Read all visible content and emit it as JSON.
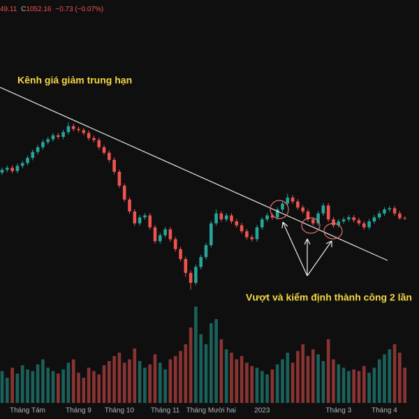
{
  "chart_data": {
    "type": "candlestick",
    "header": {
      "low_fragment": "49.11",
      "close_label": "C",
      "close_text": "1052.16",
      "change_text": "−0.73 (−0.07%)"
    },
    "annotations": [
      "Kênh giá giảm trung hạn",
      "Vượt và kiểm định thành công 2 lần"
    ],
    "categories": [
      null,
      null,
      null,
      null,
      null,
      "Tháng Tám",
      null,
      null,
      null,
      null,
      null,
      null,
      null,
      null,
      null,
      "Tháng 9",
      null,
      null,
      null,
      null,
      null,
      null,
      null,
      "Tháng 10",
      null,
      null,
      null,
      null,
      null,
      null,
      null,
      null,
      "Tháng 11",
      null,
      null,
      null,
      null,
      null,
      null,
      null,
      null,
      "Tháng Mười hai",
      null,
      null,
      null,
      null,
      null,
      null,
      null,
      null,
      null,
      "2023",
      null,
      null,
      null,
      null,
      null,
      null,
      null,
      null,
      null,
      null,
      null,
      null,
      null,
      null,
      "Tháng 3",
      null,
      null,
      null,
      null,
      null,
      null,
      null,
      null,
      "Tháng 4",
      null,
      null,
      null,
      null
    ],
    "open": [
      1168,
      1175,
      1180,
      1172,
      1185,
      1192,
      1205,
      1220,
      1232,
      1245,
      1252,
      1262,
      1258,
      1270,
      1285,
      1278,
      1275,
      1268,
      1255,
      1250,
      1232,
      1218,
      1200,
      1170,
      1135,
      1100,
      1070,
      1040,
      1055,
      1060,
      1030,
      995,
      1010,
      1025,
      1000,
      975,
      950,
      915,
      890,
      930,
      955,
      985,
      1040,
      1065,
      1050,
      1060,
      1045,
      1035,
      1020,
      1005,
      1000,
      1030,
      1050,
      1060,
      1055,
      1075,
      1090,
      1105,
      1095,
      1080,
      1070,
      1050,
      1040,
      1065,
      1085,
      1050,
      1035,
      1045,
      1050,
      1055,
      1048,
      1040,
      1030,
      1045,
      1055,
      1065,
      1075,
      1078,
      1065,
      1052.89
    ],
    "high": [
      1181,
      1186,
      1186,
      1191,
      1198,
      1211,
      1226,
      1238,
      1251,
      1258,
      1268,
      1268,
      1276,
      1295,
      1291,
      1284,
      1281,
      1274,
      1261,
      1256,
      1238,
      1224,
      1206,
      1176,
      1141,
      1106,
      1076,
      1061,
      1066,
      1066,
      1036,
      1016,
      1031,
      1031,
      1006,
      981,
      956,
      921,
      936,
      961,
      991,
      1046,
      1075,
      1071,
      1066,
      1066,
      1051,
      1041,
      1026,
      1011,
      1036,
      1056,
      1066,
      1066,
      1081,
      1096,
      1115,
      1111,
      1101,
      1086,
      1076,
      1056,
      1071,
      1091,
      1091,
      1056,
      1051,
      1056,
      1061,
      1061,
      1054,
      1046,
      1051,
      1061,
      1071,
      1081,
      1084,
      1084,
      1071,
      1058
    ],
    "low": [
      1162,
      1169,
      1166,
      1166,
      1179,
      1186,
      1199,
      1214,
      1226,
      1239,
      1246,
      1252,
      1252,
      1264,
      1272,
      1269,
      1262,
      1249,
      1244,
      1226,
      1212,
      1194,
      1164,
      1129,
      1094,
      1064,
      1034,
      1034,
      1049,
      1024,
      989,
      989,
      1004,
      994,
      969,
      944,
      905,
      873,
      884,
      924,
      949,
      979,
      1034,
      1044,
      1044,
      1039,
      1029,
      1014,
      999,
      994,
      994,
      1024,
      1044,
      1049,
      1049,
      1069,
      1084,
      1089,
      1074,
      1064,
      1044,
      1034,
      1034,
      1059,
      1044,
      1029,
      1029,
      1039,
      1044,
      1042,
      1034,
      1024,
      1024,
      1039,
      1049,
      1059,
      1069,
      1059,
      1049,
      1049.11
    ],
    "close": [
      1175,
      1180,
      1172,
      1185,
      1192,
      1205,
      1220,
      1232,
      1245,
      1252,
      1262,
      1258,
      1270,
      1285,
      1278,
      1275,
      1268,
      1255,
      1250,
      1232,
      1218,
      1200,
      1170,
      1135,
      1100,
      1070,
      1040,
      1055,
      1060,
      1030,
      995,
      1010,
      1025,
      1000,
      975,
      950,
      915,
      890,
      930,
      955,
      985,
      1040,
      1065,
      1050,
      1060,
      1045,
      1035,
      1020,
      1005,
      1000,
      1030,
      1050,
      1060,
      1055,
      1075,
      1090,
      1105,
      1095,
      1080,
      1070,
      1050,
      1040,
      1065,
      1085,
      1050,
      1035,
      1045,
      1050,
      1055,
      1048,
      1040,
      1030,
      1045,
      1055,
      1065,
      1075,
      1078,
      1065,
      1052.89,
      1052.16
    ],
    "volume": [
      380,
      300,
      420,
      350,
      450,
      400,
      380,
      460,
      520,
      420,
      380,
      350,
      400,
      480,
      520,
      360,
      300,
      420,
      380,
      340,
      450,
      500,
      560,
      600,
      480,
      520,
      650,
      500,
      420,
      460,
      580,
      480,
      400,
      520,
      560,
      620,
      700,
      900,
      1150,
      820,
      700,
      950,
      1000,
      760,
      640,
      600,
      520,
      560,
      480,
      440,
      420,
      380,
      340,
      400,
      460,
      520,
      600,
      480,
      620,
      700,
      560,
      640,
      580,
      500,
      760,
      520,
      460,
      420,
      380,
      400,
      380,
      440,
      360,
      420,
      520,
      580,
      640,
      700,
      600,
      420
    ],
    "ylim": [
      846,
      1568
    ],
    "volume_lim": [
      0,
      1250
    ],
    "up_color": "#26a69a",
    "down_color": "#ef5350"
  }
}
